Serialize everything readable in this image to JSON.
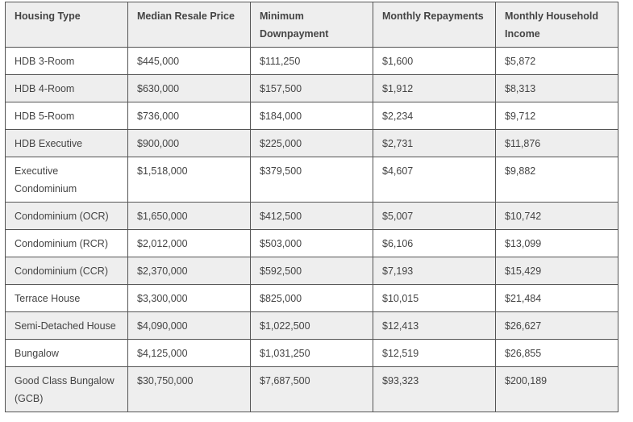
{
  "table": {
    "headers": [
      "Housing Type",
      "Median Resale Price",
      "Minimum Downpayment",
      "Monthly Repayments",
      "Monthly Household Income"
    ],
    "rows": [
      [
        "HDB 3-Room",
        "$445,000",
        "$111,250",
        "$1,600",
        "$5,872"
      ],
      [
        "HDB 4-Room",
        "$630,000",
        "$157,500",
        "$1,912",
        "$8,313"
      ],
      [
        "HDB 5-Room",
        "$736,000",
        "$184,000",
        "$2,234",
        "$9,712"
      ],
      [
        "HDB Executive",
        "$900,000",
        "$225,000",
        "$2,731",
        "$11,876"
      ],
      [
        "Executive Condominium",
        "$1,518,000",
        "$379,500",
        "$4,607",
        "$9,882"
      ],
      [
        "Condominium (OCR)",
        "$1,650,000",
        "$412,500",
        "$5,007",
        "$10,742"
      ],
      [
        "Condominium (RCR)",
        "$2,012,000",
        "$503,000",
        "$6,106",
        "$13,099"
      ],
      [
        "Condominium (CCR)",
        "$2,370,000",
        "$592,500",
        "$7,193",
        "$15,429"
      ],
      [
        "Terrace House",
        "$3,300,000",
        "$825,000",
        "$10,015",
        "$21,484"
      ],
      [
        "Semi-Detached House",
        "$4,090,000",
        "$1,022,500",
        "$12,413",
        "$26,627"
      ],
      [
        "Bungalow",
        "$4,125,000",
        "$1,031,250",
        "$12,519",
        "$26,855"
      ],
      [
        "Good Class Bungalow (GCB)",
        "$30,750,000",
        "$7,687,500",
        "$93,323",
        "$200,189"
      ]
    ]
  },
  "colors": {
    "header_bg": "#eeeeee",
    "stripe_bg": "#eeeeee",
    "border": "#555555",
    "text": "#444444"
  }
}
